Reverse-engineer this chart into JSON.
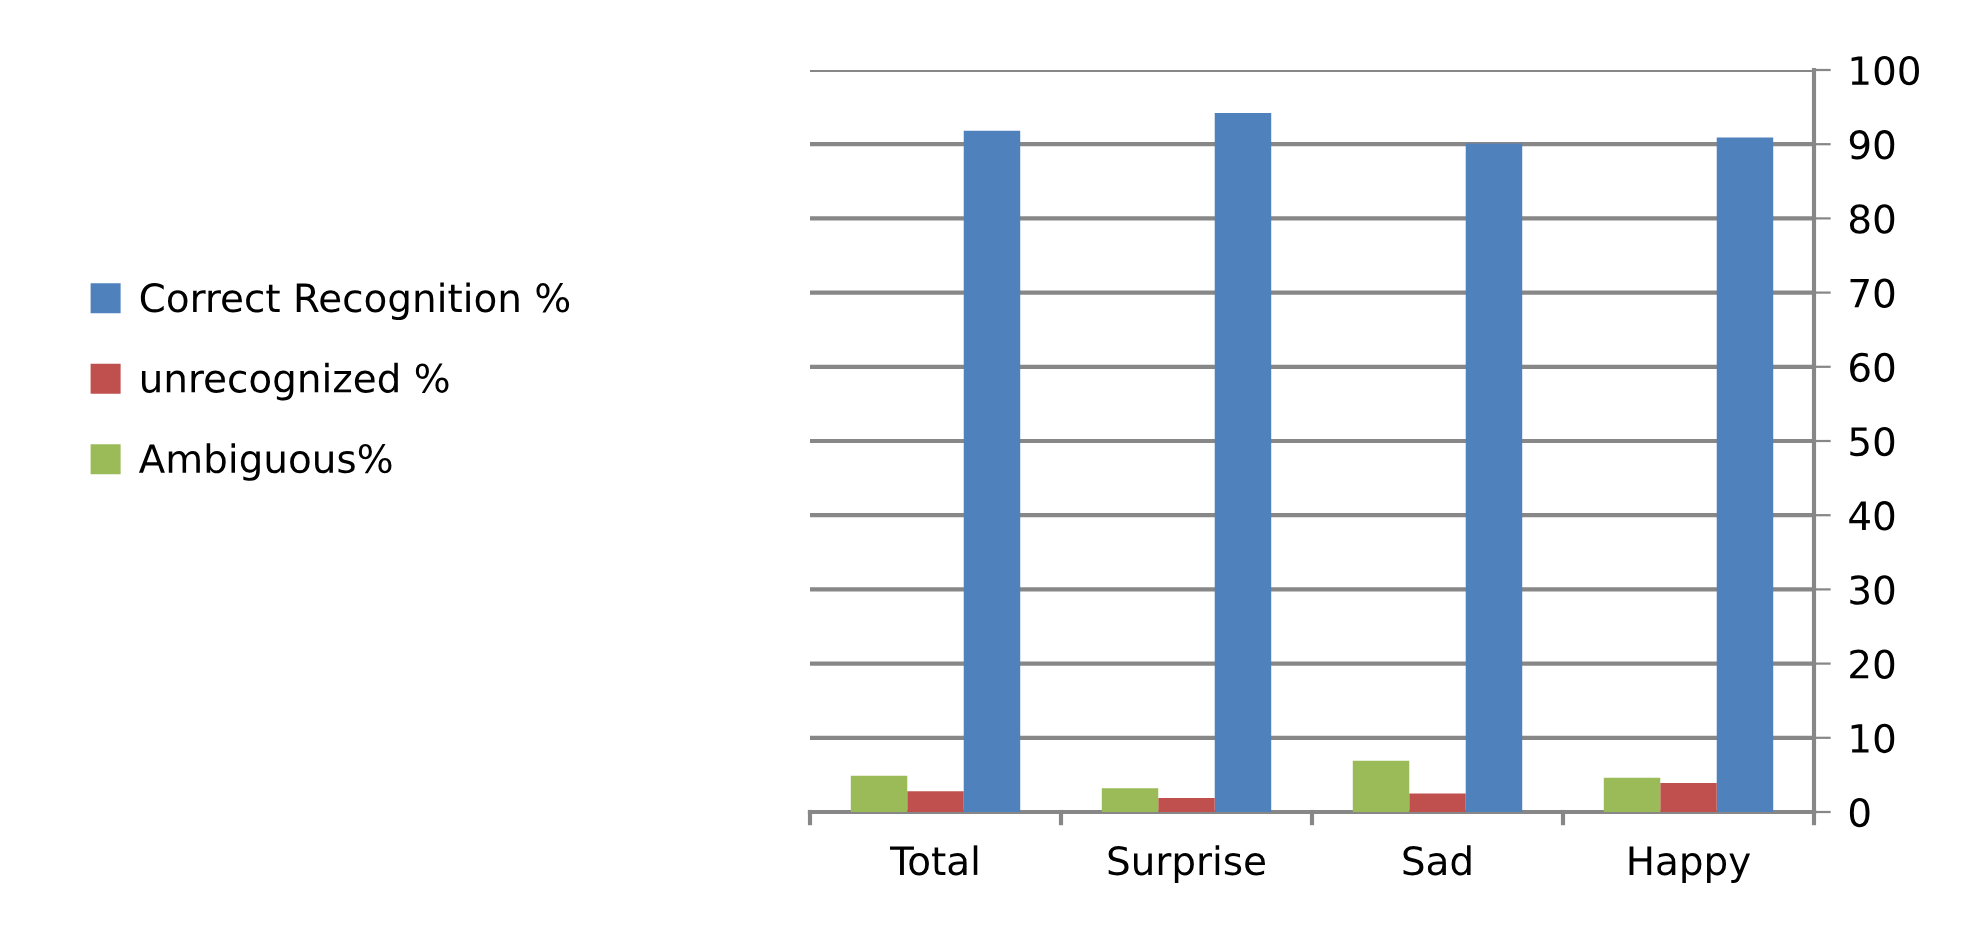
{
  "chart_data": {
    "type": "bar",
    "categories": [
      "Total",
      "Surprise",
      "Sad",
      "Happy"
    ],
    "series": [
      {
        "name": "Correct Recognition %",
        "color": "#4f81bd",
        "values": [
          91.8,
          94.2,
          90.1,
          90.9
        ]
      },
      {
        "name": "unrecognized %",
        "color": "#c0504d",
        "values": [
          2.8,
          1.9,
          2.5,
          3.9
        ]
      },
      {
        "name": "Ambiguous%",
        "color": "#9bbb59",
        "values": [
          4.9,
          3.2,
          6.9,
          4.6
        ]
      }
    ],
    "ylim": [
      0,
      100
    ],
    "yticks": [
      0,
      10,
      20,
      30,
      40,
      50,
      60,
      70,
      80,
      90,
      100
    ],
    "grid": "y",
    "legend": "left"
  }
}
